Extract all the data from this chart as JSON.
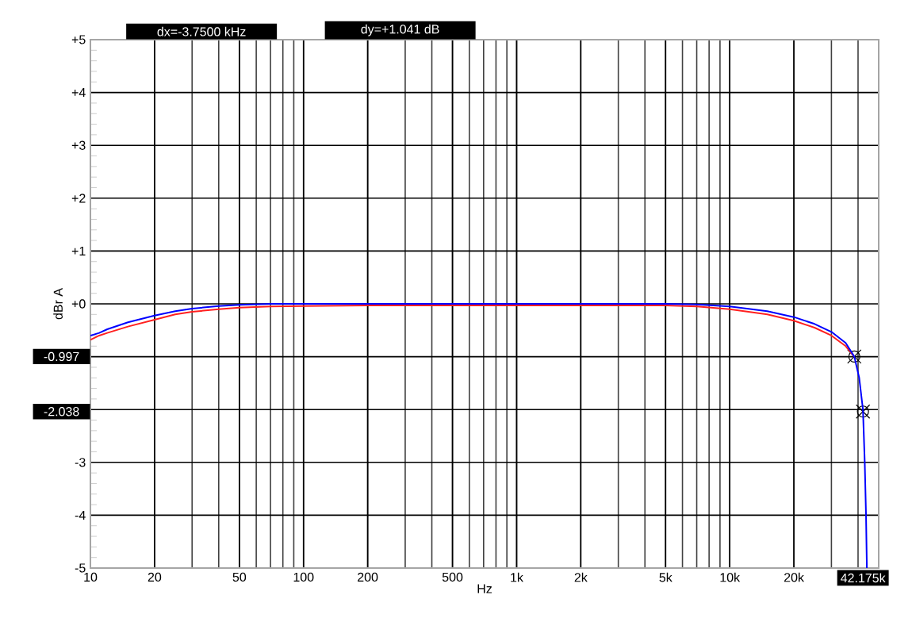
{
  "chart_data": {
    "type": "line",
    "xlabel": "Hz",
    "ylabel": "dBr A",
    "log": "x",
    "grid": true,
    "xlim": [
      10,
      50000
    ],
    "ylim": [
      -5,
      5
    ],
    "xticks": [
      10,
      20,
      50,
      100,
      200,
      500,
      {
        "value": 1000,
        "label": "1k"
      },
      {
        "value": 2000,
        "label": "2k"
      },
      {
        "value": 5000,
        "label": "5k"
      },
      {
        "value": 10000,
        "label": "10k"
      },
      {
        "value": 20000,
        "label": "20k"
      },
      {
        "value": 50000,
        "label": null
      }
    ],
    "yticks": [
      {
        "value": 5,
        "label": "+5"
      },
      {
        "value": 4,
        "label": "+4"
      },
      {
        "value": 3,
        "label": "+3"
      },
      {
        "value": 2,
        "label": "+2"
      },
      {
        "value": 1,
        "label": "+1"
      },
      {
        "value": 0,
        "label": "+0"
      },
      {
        "value": -1,
        "label": null
      },
      {
        "value": -2,
        "label": null
      },
      -3,
      -4,
      -5
    ],
    "series": [
      {
        "color": "#ff2020",
        "x": [
          10,
          11,
          12,
          15,
          20,
          25,
          30,
          40,
          50,
          70,
          100,
          200,
          500,
          1000,
          2000,
          5000,
          7000,
          10000,
          15000,
          20000,
          25000,
          30000,
          35000,
          38425
        ],
        "values": [
          -0.68,
          -0.6,
          -0.55,
          -0.43,
          -0.3,
          -0.2,
          -0.15,
          -0.1,
          -0.07,
          -0.05,
          -0.04,
          -0.03,
          -0.03,
          -0.03,
          -0.03,
          -0.03,
          -0.05,
          -0.1,
          -0.2,
          -0.32,
          -0.45,
          -0.6,
          -0.8,
          -1.0
        ]
      },
      {
        "color": "#0000ff",
        "x": [
          10,
          11,
          12,
          15,
          20,
          25,
          30,
          40,
          50,
          70,
          100,
          200,
          500,
          1000,
          2000,
          5000,
          7000,
          10000,
          15000,
          20000,
          25000,
          30000,
          35000,
          38425,
          40500,
          42175,
          43000,
          43600,
          44000
        ],
        "values": [
          -0.6,
          -0.55,
          -0.48,
          -0.35,
          -0.22,
          -0.14,
          -0.09,
          -0.04,
          -0.02,
          0,
          0,
          0,
          0,
          0,
          0,
          0,
          -0.01,
          -0.05,
          -0.14,
          -0.25,
          -0.38,
          -0.53,
          -0.74,
          -1.0,
          -1.4,
          -2.0,
          -3,
          -4,
          -5
        ]
      },
      {
        "type": "scatter",
        "marker": "cross",
        "color": "#000000",
        "x": [
          38425,
          42175
        ],
        "values": [
          -0.997,
          -2.038
        ]
      }
    ],
    "annotations": [
      "dx=-3.7500 kHz",
      "dy=+1.041  dB",
      "-0.997",
      "-2.038",
      {
        "text": "42.175k",
        "x": 42175
      }
    ]
  }
}
